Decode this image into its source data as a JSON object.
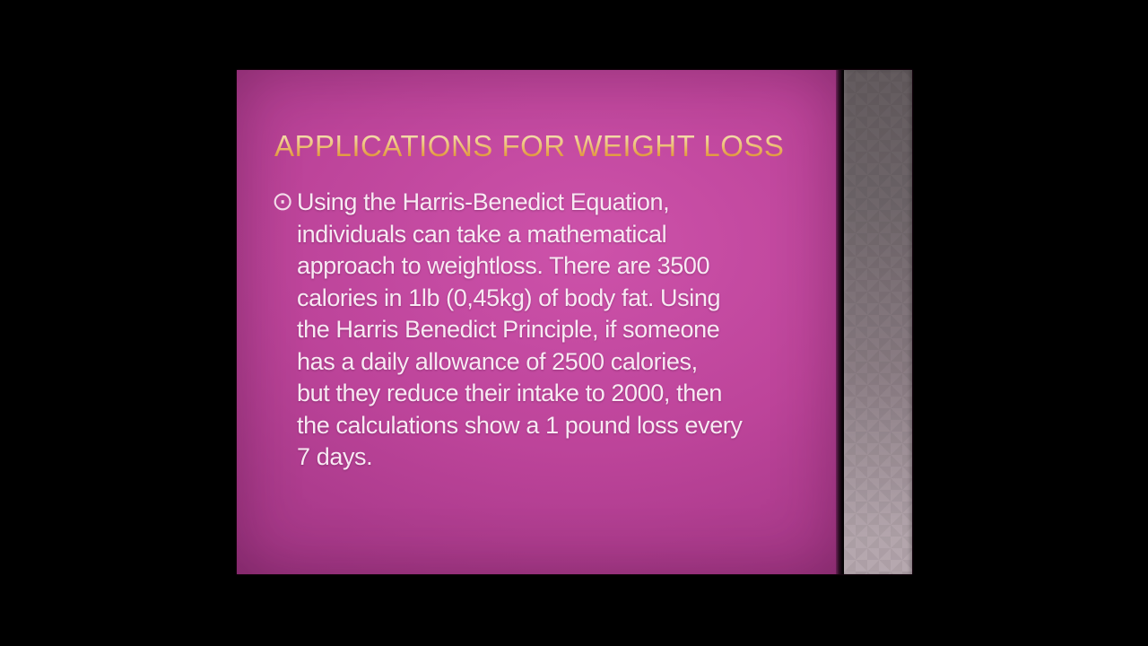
{
  "slide": {
    "title": "APPLICATIONS FOR WEIGHT LOSS",
    "bullet_glyph": "⊙",
    "body_lines": [
      "Using the Harris-Benedict Equation,",
      "individuals can take a mathematical",
      "approach to weightloss. There are 3500",
      "calories in 1lb (0,45kg) of body fat. Using",
      "the Harris Benedict Principle, if someone",
      "has a daily allowance of 2500 calories,",
      "but they reduce their intake to 2000, then",
      "the calculations show a 1 pound loss every",
      "7 days."
    ],
    "colors": {
      "letterbox_background": "#000000",
      "slide_magenta_center": "#cd52aa",
      "slide_magenta_edge": "#8a2c74",
      "title_gradient_top": "#f8ecca",
      "title_gradient_bottom": "#cf8230",
      "body_text": "#f8e9f3",
      "side_strip_top": "#635b5e",
      "side_strip_bottom": "#b7a9b0",
      "divider": "#0a0308"
    }
  }
}
